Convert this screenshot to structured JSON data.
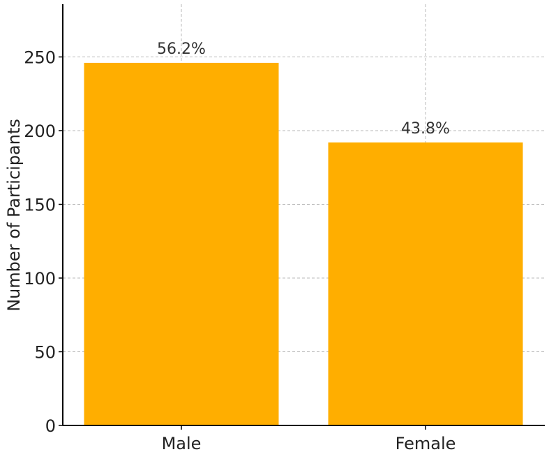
{
  "chart_data": {
    "type": "bar",
    "categories": [
      "Male",
      "Female"
    ],
    "values": [
      246,
      192
    ],
    "data_labels": [
      "56.2%",
      "43.8%"
    ],
    "title": "",
    "xlabel": "",
    "ylabel": "Number of Participants",
    "ylim": [
      0,
      285
    ],
    "yticks": [
      0,
      50,
      100,
      150,
      200,
      250
    ],
    "ytick_labels": [
      "0",
      "50",
      "100",
      "150",
      "200",
      "250"
    ],
    "grid": true,
    "legend": "none",
    "bar_color": "#ffae00"
  }
}
